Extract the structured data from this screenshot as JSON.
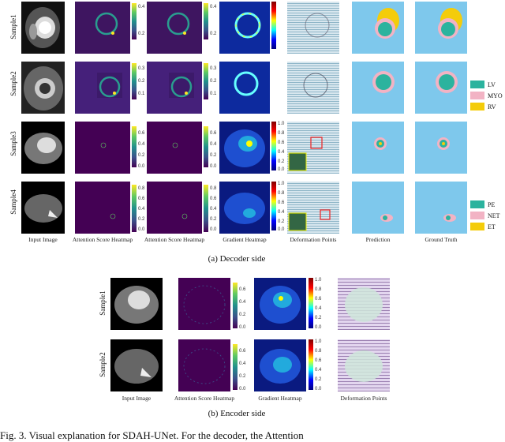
{
  "decoder": {
    "rows": [
      "Sample1",
      "Sample2",
      "Sample3",
      "Sample4"
    ],
    "col_labels": [
      "Input Image",
      "Attention Score Heatmap",
      "Attention Score Heatmap",
      "Gradient Heatmap",
      "Deformation Points",
      "Prediction",
      "Ground Truth"
    ],
    "caption": "(a) Decoder side",
    "colorbar_ticks": {
      "s1a": [
        "0.4",
        "0.2"
      ],
      "s1b": [
        "0.4",
        "0.2"
      ],
      "s1g": [
        "1.0",
        "0.8",
        "0.6",
        "0.4",
        "0.2",
        "0.0"
      ],
      "s2a": [
        "0.3",
        "0.2",
        "0.1"
      ],
      "s2b": [
        "0.3",
        "0.2",
        "0.1"
      ],
      "s3a": [
        "0.6",
        "0.4",
        "0.2",
        "0.0"
      ],
      "s3b": [
        "0.6",
        "0.4",
        "0.2",
        "0.0"
      ],
      "s3g": [
        "1.0",
        "0.8",
        "0.6",
        "0.4",
        "0.2",
        "0.0"
      ],
      "s4a": [
        "0.8",
        "0.6",
        "0.4",
        "0.2",
        "0.0"
      ],
      "s4b": [
        "0.8",
        "0.6",
        "0.4",
        "0.2",
        "0.0"
      ],
      "s4g": [
        "1.0",
        "0.8",
        "0.6",
        "0.4",
        "0.2",
        "0.0"
      ]
    },
    "legend_cardiac": [
      {
        "label": "LV",
        "color": "#2bb39e"
      },
      {
        "label": "MYO",
        "color": "#f2b3c4"
      },
      {
        "label": "RV",
        "color": "#f4cc0a"
      }
    ],
    "legend_brain": [
      {
        "label": "PE",
        "color": "#2bb39e"
      },
      {
        "label": "NET",
        "color": "#f2b3c4"
      },
      {
        "label": "ET",
        "color": "#f4cc0a"
      }
    ]
  },
  "encoder": {
    "rows": [
      "Sample1",
      "Sample2"
    ],
    "col_labels": [
      "Input Image",
      "Attention Score Heatmap",
      "Gradient Heatmap",
      "Deformation Points"
    ],
    "caption": "(b) Encoder side",
    "colorbar_ticks": {
      "a": [
        "0.6",
        "0.4",
        "0.2",
        "0.0"
      ],
      "g": [
        "1.0",
        "0.8",
        "0.6",
        "0.4",
        "0.2",
        "0.0"
      ]
    }
  },
  "figure_caption_partial": "Fig. 3.   Visual explanation for SDAH-UNet. For the decoder, the Attention"
}
